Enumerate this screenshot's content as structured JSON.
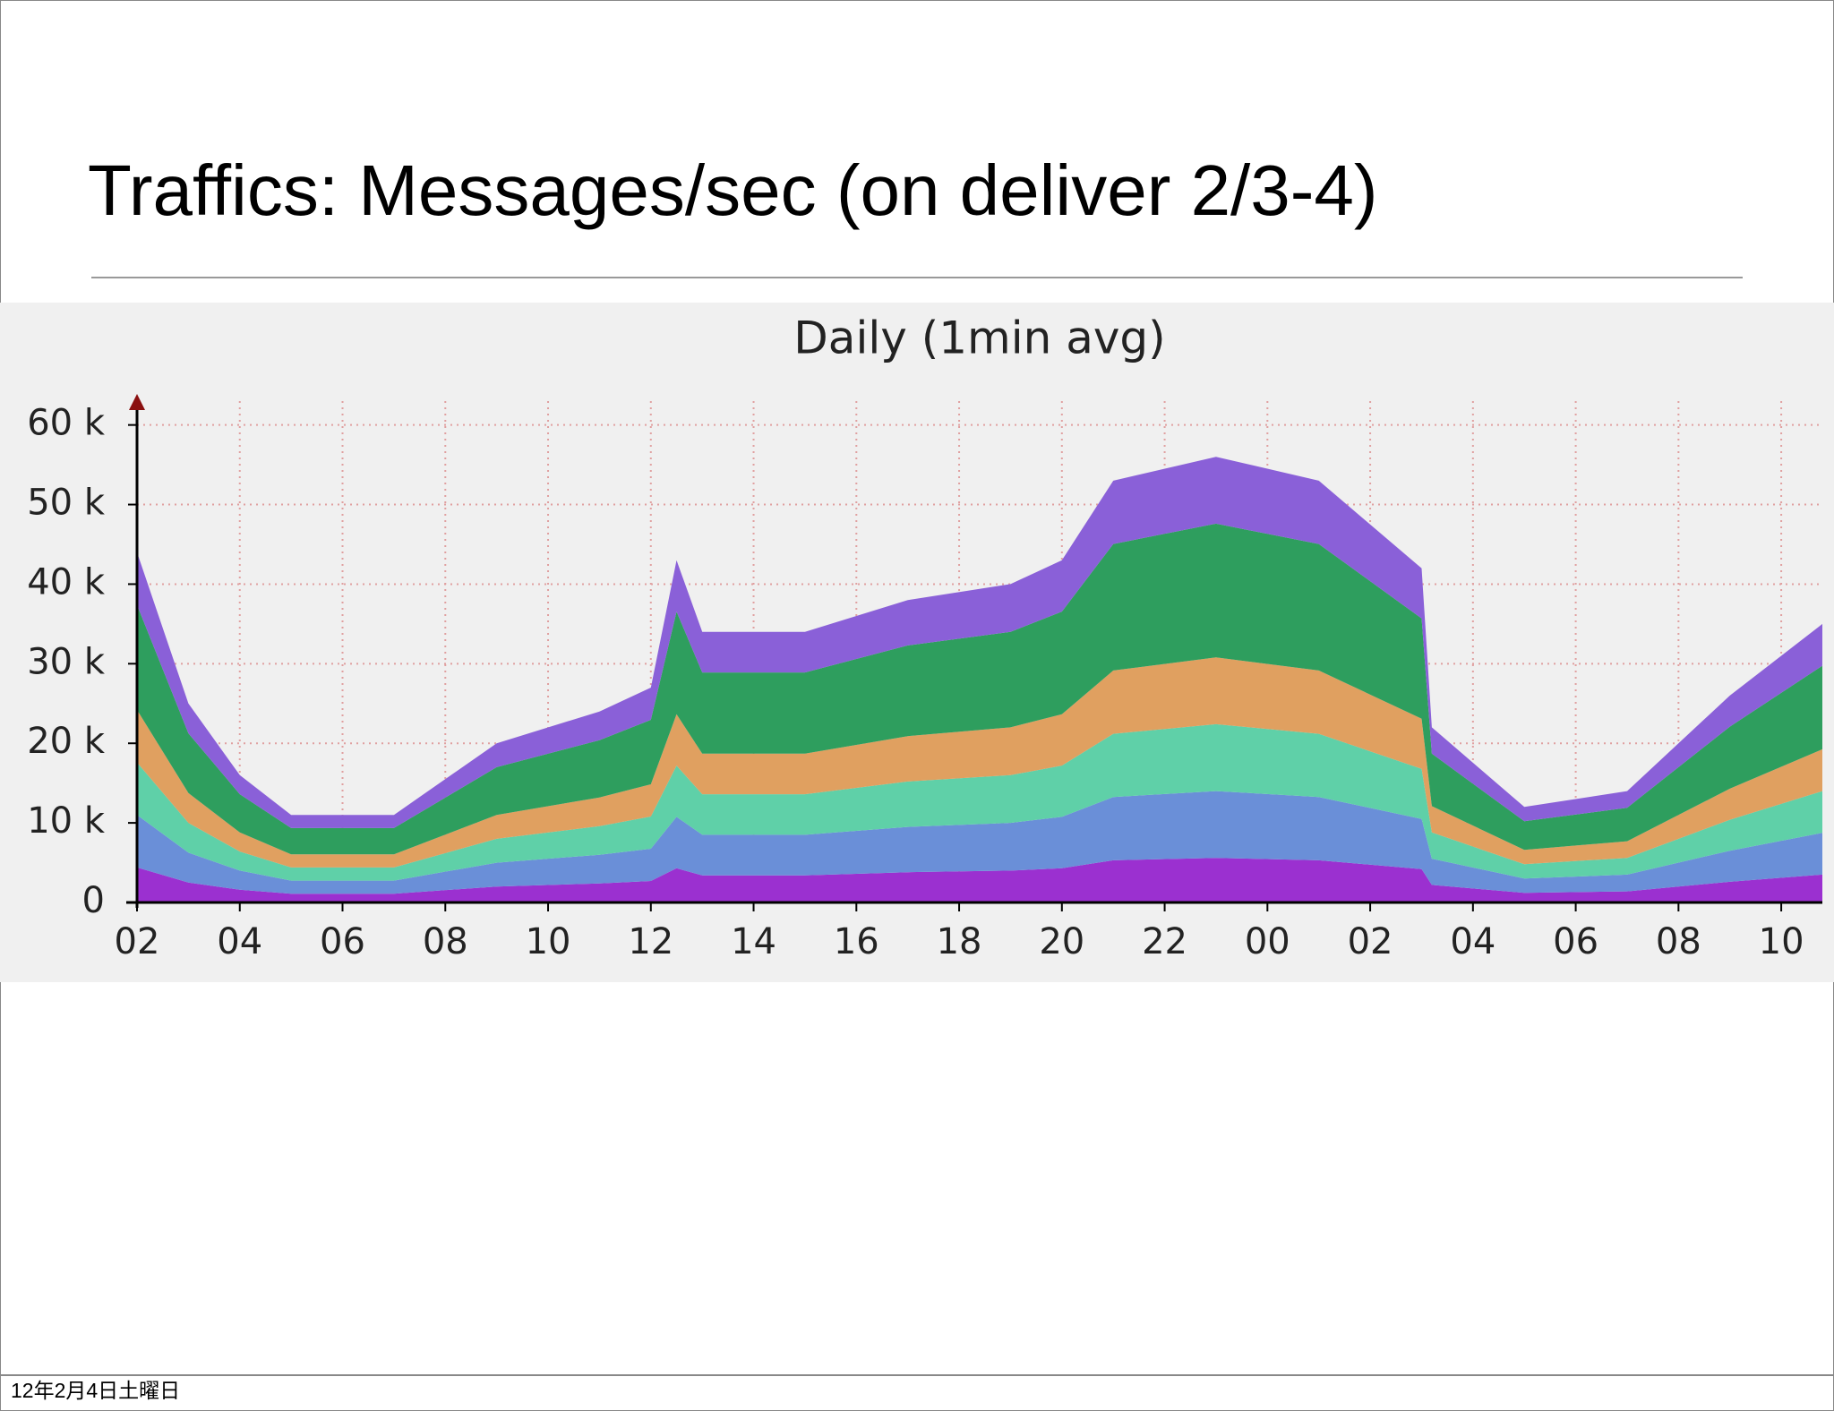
{
  "title": "Traffics: Messages/sec (on deliver 2/3-4)",
  "footer": "12年2月4日土曜日",
  "chart_data": {
    "type": "stacked_area",
    "title": "Daily (1min avg)",
    "x": [
      0,
      1,
      2,
      3,
      5,
      7,
      9,
      10,
      10.5,
      11,
      13,
      15,
      17,
      18,
      19,
      21,
      23,
      25,
      25.2,
      27,
      29,
      31,
      32.8
    ],
    "xlim": [
      0,
      32.8
    ],
    "xticks": [
      {
        "value": 0,
        "label": "02"
      },
      {
        "value": 2,
        "label": "04"
      },
      {
        "value": 4,
        "label": "06"
      },
      {
        "value": 6,
        "label": "08"
      },
      {
        "value": 8,
        "label": "10"
      },
      {
        "value": 10,
        "label": "12"
      },
      {
        "value": 12,
        "label": "14"
      },
      {
        "value": 14,
        "label": "16"
      },
      {
        "value": 16,
        "label": "18"
      },
      {
        "value": 18,
        "label": "20"
      },
      {
        "value": 20,
        "label": "22"
      },
      {
        "value": 22,
        "label": "00"
      },
      {
        "value": 24,
        "label": "02"
      },
      {
        "value": 26,
        "label": "04"
      },
      {
        "value": 28,
        "label": "06"
      },
      {
        "value": 30,
        "label": "08"
      },
      {
        "value": 32,
        "label": "10"
      }
    ],
    "ylim": [
      0,
      63000
    ],
    "yticks": [
      0,
      {
        "value": 10000,
        "label": "10 k"
      },
      {
        "value": 20000,
        "label": "20 k"
      },
      {
        "value": 30000,
        "label": "30 k"
      },
      {
        "value": 40000,
        "label": "40 k"
      },
      {
        "value": 50000,
        "label": "50 k"
      },
      {
        "value": 60000,
        "label": "60 k"
      }
    ],
    "grid": true,
    "series": [
      {
        "color": "#9b30d0",
        "values": [
          4400,
          2500,
          1600,
          1100,
          1100,
          2000,
          2400,
          2700,
          4300,
          3400,
          3400,
          3800,
          4000,
          4300,
          5300,
          5600,
          5300,
          4200,
          2200,
          1200,
          1400,
          2600,
          3500
        ]
      },
      {
        "color": "#6a8fd8",
        "values": [
          6600,
          3750,
          2400,
          1650,
          1650,
          3000,
          3600,
          4050,
          6450,
          5100,
          5100,
          5700,
          6000,
          6450,
          7950,
          8400,
          7950,
          6300,
          3300,
          1800,
          2100,
          3900,
          5250
        ]
      },
      {
        "color": "#5fd0a8",
        "values": [
          6600,
          3750,
          2400,
          1650,
          1650,
          3000,
          3600,
          4050,
          6450,
          5100,
          5100,
          5700,
          6000,
          6450,
          7950,
          8400,
          7950,
          6300,
          3300,
          1800,
          2100,
          3900,
          5250
        ]
      },
      {
        "color": "#e0a060",
        "values": [
          6600,
          3750,
          2400,
          1650,
          1650,
          3000,
          3600,
          4050,
          6450,
          5100,
          5100,
          5700,
          6000,
          6450,
          7950,
          8400,
          7950,
          6300,
          3300,
          1800,
          2100,
          3900,
          5250
        ]
      },
      {
        "color": "#2e9e5e",
        "values": [
          13200,
          7500,
          4800,
          3300,
          3300,
          6000,
          7200,
          8100,
          12900,
          10200,
          10200,
          11400,
          12000,
          12900,
          15900,
          16800,
          15900,
          12600,
          6600,
          3600,
          4200,
          7800,
          10500
        ]
      },
      {
        "color": "#8a60d8",
        "values": [
          6600,
          3750,
          2400,
          1650,
          1650,
          3000,
          3600,
          4050,
          6450,
          5100,
          5100,
          5700,
          6000,
          6450,
          7950,
          8400,
          7950,
          6300,
          3300,
          1800,
          2100,
          3900,
          5250
        ]
      }
    ]
  }
}
